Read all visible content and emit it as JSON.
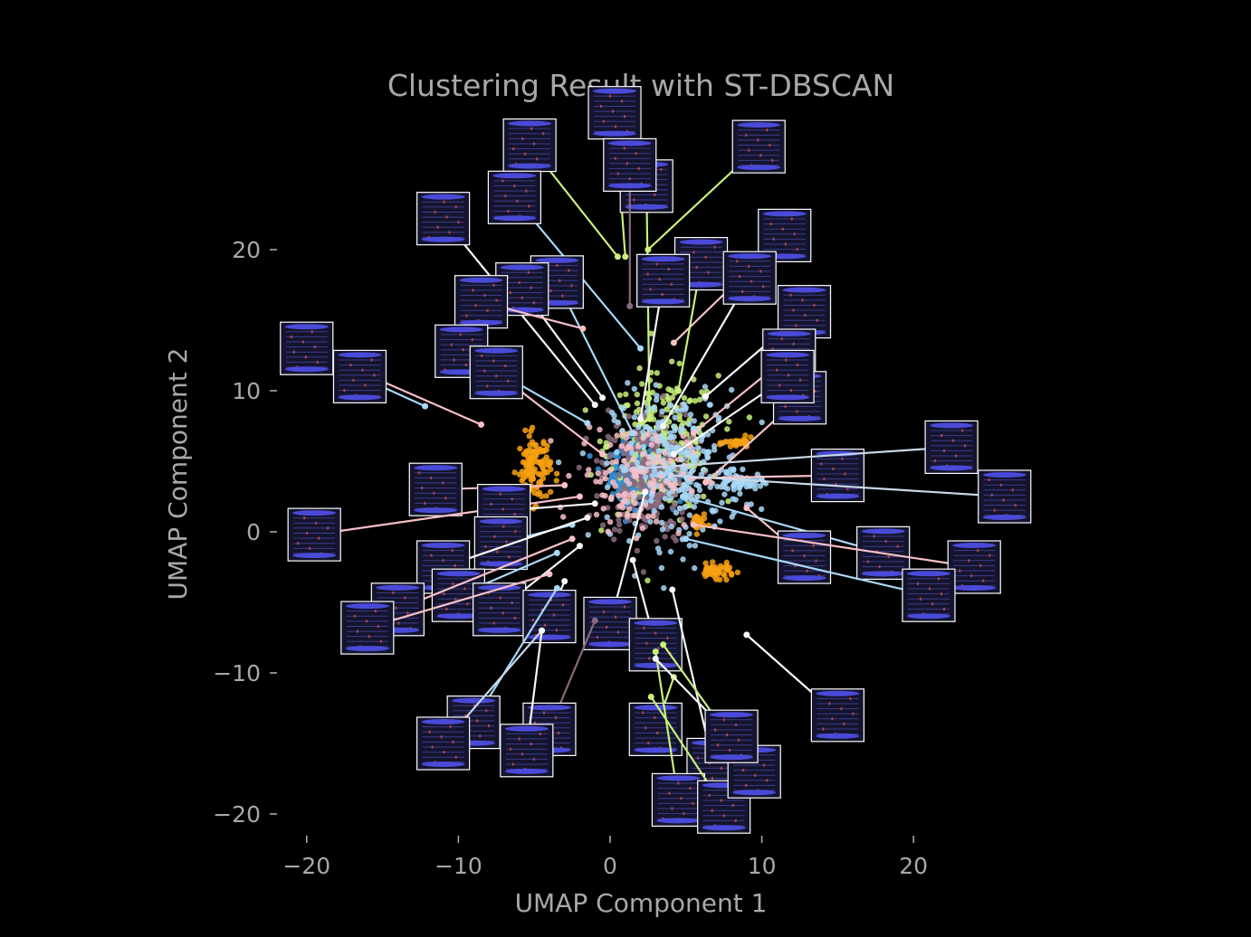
{
  "chart_data": {
    "type": "scatter",
    "title": "Clustering Result with ST-DBSCAN",
    "xlabel": "UMAP Component 1",
    "ylabel": "UMAP Component 2",
    "xlim": [
      -22,
      30
    ],
    "ylim": [
      -21.5,
      29
    ],
    "xticks": [
      -20,
      -10,
      0,
      10,
      20
    ],
    "yticks": [
      -20,
      -10,
      0,
      10,
      20
    ],
    "xtick_labels": [
      "−20",
      "−10",
      "0",
      "10",
      "20"
    ],
    "ytick_labels": [
      "−20",
      "−10",
      "0",
      "10",
      "20"
    ],
    "grid": false,
    "legend": "none",
    "background": "#000000",
    "text_color": "#a8a8a8",
    "inset_style": {
      "background": "#14142e",
      "border": "#ffffff",
      "bar_color": "#4a4ad8",
      "line_color": "#3c3c8c",
      "dot_color": "#b04848"
    },
    "clusters": [
      {
        "color": "#3a93d8",
        "cx": 2.0,
        "cy": 4.2,
        "sx": 1.6,
        "sy": 1.7,
        "n": 340
      },
      {
        "color": "#c8f07a",
        "cx": 3.5,
        "cy": 6.2,
        "sx": 3.0,
        "sy": 4.0,
        "n": 260
      },
      {
        "color": "#8a6a7e",
        "cx": 2.5,
        "cy": 4.0,
        "sx": 2.6,
        "sy": 4.0,
        "n": 240
      },
      {
        "color": "#a8d8f8",
        "cx": 4.5,
        "cy": 4.5,
        "sx": 3.5,
        "sy": 4.5,
        "n": 260
      },
      {
        "color": "#f8a010",
        "cx": -5.0,
        "cy": 4.5,
        "sx": 0.9,
        "sy": 2.0,
        "n": 120
      },
      {
        "color": "#f8a010",
        "cx": 7.0,
        "cy": -2.8,
        "sx": 1.0,
        "sy": 0.4,
        "n": 50
      },
      {
        "color": "#f8a010",
        "cx": 8.5,
        "cy": 6.3,
        "sx": 0.8,
        "sy": 0.3,
        "n": 30
      },
      {
        "color": "#f8a010",
        "cx": 5.8,
        "cy": 0.6,
        "sx": 0.4,
        "sy": 0.6,
        "n": 25
      },
      {
        "color": "#a8d8f8",
        "cx": 8.5,
        "cy": 3.5,
        "sx": 1.3,
        "sy": 0.6,
        "n": 60
      },
      {
        "color": "#f8c0c8",
        "cx": 1.5,
        "cy": 4.0,
        "sx": 3.0,
        "sy": 3.2,
        "n": 120
      }
    ],
    "annotations": [
      {
        "color": "#c8f07a",
        "point": [
          1.0,
          19.5
        ],
        "box": [
          0.3,
          29.7
        ]
      },
      {
        "color": "#c8f07a",
        "point": [
          0.5,
          19.5
        ],
        "box": [
          -5.3,
          27.4
        ]
      },
      {
        "color": "#c8f07a",
        "point": [
          2.5,
          20.0
        ],
        "box": [
          9.8,
          27.3
        ]
      },
      {
        "color": "#c8f07a",
        "point": [
          2.6,
          8.0
        ],
        "box": [
          2.4,
          24.5
        ]
      },
      {
        "color": "#a8d8f8",
        "point": [
          2.0,
          13.0
        ],
        "box": [
          -6.3,
          23.7
        ]
      },
      {
        "color": "#8a6a7e",
        "point": [
          1.3,
          16.0
        ],
        "box": [
          1.3,
          26.0
        ]
      },
      {
        "color": "#f8f8f8",
        "point": [
          -1.0,
          9.0
        ],
        "box": [
          -11.0,
          22.2
        ]
      },
      {
        "color": "#f8c0c8",
        "point": [
          4.2,
          13.4
        ],
        "box": [
          11.5,
          21.0
        ]
      },
      {
        "color": "#c8f07a",
        "point": [
          4.5,
          10.0
        ],
        "box": [
          6.0,
          19.0
        ]
      },
      {
        "color": "#f8f8f8",
        "point": [
          3.5,
          7.5
        ],
        "box": [
          9.2,
          18.0
        ]
      },
      {
        "color": "#f8f8f8",
        "point": [
          2.0,
          8.0
        ],
        "box": [
          3.5,
          17.8
        ]
      },
      {
        "color": "#a8d8f8",
        "point": [
          1.5,
          7.0
        ],
        "box": [
          -3.5,
          17.7
        ]
      },
      {
        "color": "#f8f8f8",
        "point": [
          -0.5,
          9.5
        ],
        "box": [
          -5.8,
          17.2
        ]
      },
      {
        "color": "#f8c0c8",
        "point": [
          -1.8,
          14.4
        ],
        "box": [
          -8.5,
          16.3
        ]
      },
      {
        "color": "#f8f8f8",
        "point": [
          6.3,
          9.6
        ],
        "box": [
          12.8,
          15.6
        ]
      },
      {
        "color": "#f8c0c8",
        "point": [
          5.5,
          7.0
        ],
        "box": [
          11.8,
          12.5
        ]
      },
      {
        "color": "#a8d8f8",
        "point": [
          -1.5,
          7.7
        ],
        "box": [
          -9.8,
          12.8
        ]
      },
      {
        "color": "#f8c0c8",
        "point": [
          -8.5,
          7.6
        ],
        "box": [
          -20.0,
          13.0
        ]
      },
      {
        "color": "#a8d8f8",
        "point": [
          -12.2,
          8.9
        ],
        "box": [
          -16.5,
          11.0
        ]
      },
      {
        "color": "#f8c0c8",
        "point": [
          -0.5,
          5.5
        ],
        "box": [
          -7.5,
          11.3
        ]
      },
      {
        "color": "#f8c0c8",
        "point": [
          6.3,
          3.5
        ],
        "box": [
          12.5,
          9.5
        ]
      },
      {
        "color": "#f8f8f8",
        "point": [
          4.2,
          5.5
        ],
        "box": [
          11.7,
          11.0
        ]
      },
      {
        "color": "#f8c0c8",
        "point": [
          5.3,
          3.8
        ],
        "box": [
          15.0,
          4.0
        ]
      },
      {
        "color": "#c8d8e8",
        "point": [
          2.0,
          4.5
        ],
        "box": [
          22.5,
          6.0
        ]
      },
      {
        "color": "#c8d8e8",
        "point": [
          4.0,
          4.0
        ],
        "box": [
          26.0,
          2.5
        ]
      },
      {
        "color": "#a8d8f8",
        "point": [
          4.8,
          2.5
        ],
        "box": [
          18.0,
          -1.5
        ]
      },
      {
        "color": "#f8c0c8",
        "point": [
          9.0,
          1.7
        ],
        "box": [
          12.8,
          -1.8
        ]
      },
      {
        "color": "#f8c0c8",
        "point": [
          5.5,
          0.5
        ],
        "box": [
          24.0,
          -2.5
        ]
      },
      {
        "color": "#a8d8f8",
        "point": [
          5.0,
          -0.5
        ],
        "box": [
          21.0,
          -4.5
        ]
      },
      {
        "color": "#f8c0c8",
        "point": [
          -3.0,
          3.3
        ],
        "box": [
          -11.5,
          3.0
        ]
      },
      {
        "color": "#f8c0c8",
        "point": [
          -2.0,
          2.5
        ],
        "box": [
          -19.5,
          -0.2
        ]
      },
      {
        "color": "#f8f8f8",
        "point": [
          -1.0,
          2.0
        ],
        "box": [
          -7.0,
          1.5
        ]
      },
      {
        "color": "#a8d8f8",
        "point": [
          -2.5,
          0.5
        ],
        "box": [
          -7.2,
          -0.8
        ]
      },
      {
        "color": "#f8f8f8",
        "point": [
          -1.5,
          1.0
        ],
        "box": [
          -11.0,
          -2.5
        ]
      },
      {
        "color": "#a8d8f8",
        "point": [
          -3.5,
          -1.5
        ],
        "box": [
          -10.0,
          -4.5
        ]
      },
      {
        "color": "#f8f8f8",
        "point": [
          -2.0,
          -1.0
        ],
        "box": [
          -7.3,
          -5.5
        ]
      },
      {
        "color": "#f8c0c8",
        "point": [
          -2.5,
          -0.5
        ],
        "box": [
          -14.0,
          -5.5
        ]
      },
      {
        "color": "#f8f8f8",
        "point": [
          -3.0,
          -3.5
        ],
        "box": [
          -4.0,
          -6.0
        ]
      },
      {
        "color": "#f8c0c8",
        "point": [
          -4.0,
          -3.0
        ],
        "box": [
          -16.0,
          -6.8
        ]
      },
      {
        "color": "#f8f8f8",
        "point": [
          2.3,
          2.8
        ],
        "box": [
          0.0,
          -6.5
        ]
      },
      {
        "color": "#f8f8f8",
        "point": [
          1.5,
          -2.0
        ],
        "box": [
          3.0,
          -8.0
        ]
      },
      {
        "color": "#8a6a7e",
        "point": [
          -1.0,
          -6.3
        ],
        "box": [
          -4.0,
          -14.0
        ]
      },
      {
        "color": "#a8d8f8",
        "point": [
          -3.5,
          -4.0
        ],
        "box": [
          -9.0,
          -13.5
        ]
      },
      {
        "color": "#c8d8e8",
        "point": [
          -4.5,
          -7.0
        ],
        "box": [
          -11.0,
          -15.0
        ]
      },
      {
        "color": "#f8f8f8",
        "point": [
          -4.5,
          -7.0
        ],
        "box": [
          -5.5,
          -15.5
        ]
      },
      {
        "color": "#c8f07a",
        "point": [
          4.2,
          -10.3
        ],
        "box": [
          3.0,
          -14.0
        ]
      },
      {
        "color": "#f8f8f8",
        "point": [
          4.1,
          -4.1
        ],
        "box": [
          6.8,
          -16.5
        ]
      },
      {
        "color": "#c8f07a",
        "point": [
          3.0,
          -8.5
        ],
        "box": [
          4.5,
          -19.0
        ]
      },
      {
        "color": "#c8f07a",
        "point": [
          2.7,
          -11.7
        ],
        "box": [
          7.5,
          -19.5
        ]
      },
      {
        "color": "#f8f8f8",
        "point": [
          9.0,
          -7.3
        ],
        "box": [
          15.0,
          -13.0
        ]
      },
      {
        "color": "#c8f07a",
        "point": [
          3.5,
          -8.0
        ],
        "box": [
          9.5,
          -17.0
        ]
      },
      {
        "color": "#f8f8f8",
        "point": [
          3.0,
          -9.0
        ],
        "box": [
          8.0,
          -14.5
        ]
      }
    ]
  }
}
